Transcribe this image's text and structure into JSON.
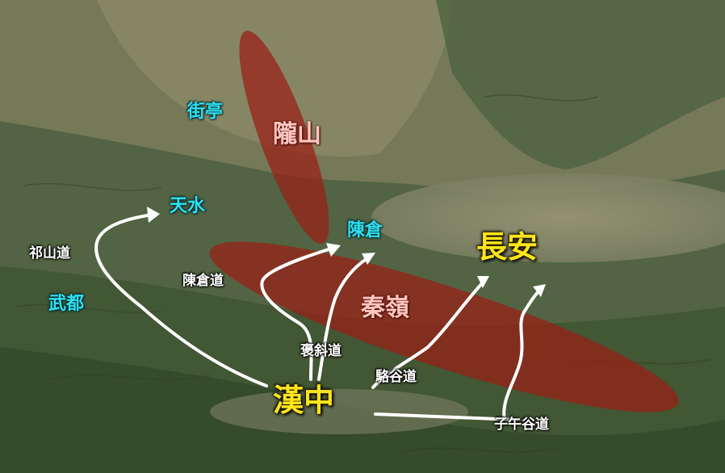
{
  "map": {
    "colors": {
      "mountain_fill": "#9a1e16",
      "route_line": "#ffffff",
      "place_label": "#2fe0f0",
      "major_label": "#ffe51a",
      "terrain_dark": "#3d5230",
      "terrain_light": "#8c8c6e"
    },
    "places": {
      "jieting": "街亭",
      "tianshui": "天水",
      "wudu": "武都",
      "chencang": "陳倉",
      "changan": "長安",
      "hanzhong": "漢中"
    },
    "mountains": {
      "longshan": "隴山",
      "qinling": "秦嶺"
    },
    "routes": {
      "qishan": "祁山道",
      "chencang_road": "陳倉道",
      "baoxie": "褒斜道",
      "luogu": "駱谷道",
      "ziwu": "子午谷道"
    }
  }
}
